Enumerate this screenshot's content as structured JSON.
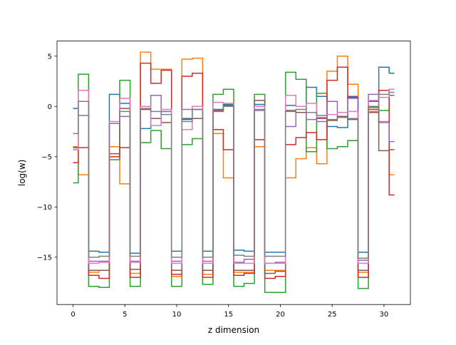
{
  "chart_data": {
    "type": "line",
    "step": true,
    "title": "",
    "xlabel": "z dimension",
    "ylabel": "log(w)",
    "xlim": [
      -1.55,
      32.55
    ],
    "ylim": [
      -19.7,
      6.5
    ],
    "xticks": [
      0,
      5,
      10,
      15,
      20,
      25,
      30
    ],
    "yticks": [
      5,
      0,
      -5,
      -10,
      -15
    ],
    "grid": false,
    "legend": "none",
    "series": [
      {
        "color": "#1f77b4",
        "values": [
          -0.2,
          0.5,
          -14.4,
          -14.5,
          1.2,
          0.3,
          -14.6,
          -2.2,
          -1.2,
          -0.5,
          -14.4,
          -1.2,
          -0.3,
          -14.4,
          -0.3,
          0.2,
          -14.3,
          -14.4,
          0.2,
          -14.5,
          -14.5,
          0.1,
          0,
          1.9,
          1,
          -2,
          -2.1,
          1,
          -14.5,
          0.5,
          3.9,
          3.3
        ]
      },
      {
        "color": "#ff7f0e",
        "values": [
          -4,
          -6.8,
          -16.5,
          -16.3,
          -4,
          -7.7,
          -16.6,
          5.4,
          3.7,
          3.7,
          -16.9,
          4.7,
          4.8,
          -16.7,
          -2.7,
          -7.1,
          -16.5,
          -16.5,
          -4,
          -16.3,
          -16.3,
          -7.1,
          -5.2,
          -4.1,
          -5.7,
          3.5,
          5,
          2.2,
          -16.5,
          -0.5,
          -1.5,
          -6.8
        ]
      },
      {
        "color": "#2ca02c",
        "values": [
          -7.6,
          3.2,
          -17.9,
          -18,
          -5.3,
          2.6,
          -17.9,
          -3.6,
          -2.4,
          -4.2,
          -17.9,
          -3.8,
          -3.2,
          -17.7,
          1.2,
          1.7,
          -17.9,
          -17.6,
          1.2,
          -18.5,
          -18.5,
          3.4,
          2.7,
          -4.5,
          1.3,
          -4.2,
          -4,
          -3.4,
          -18.1,
          -0.1,
          -0.4,
          1.1
        ]
      },
      {
        "color": "#d62728",
        "values": [
          -5.6,
          -4.1,
          -16.8,
          -17.1,
          -5,
          -4.1,
          -17,
          4.3,
          2.3,
          3.6,
          -16.7,
          3,
          3.3,
          -17,
          -2.3,
          -4.3,
          -16.8,
          -16.6,
          -3.3,
          -17.1,
          -16.9,
          -3.8,
          -3.1,
          -2.6,
          -3.3,
          2.6,
          3.9,
          0.9,
          -17,
          -0.3,
          1.6,
          -8.8
        ]
      },
      {
        "color": "#9467bd",
        "values": [
          -4.3,
          -0.9,
          -15.4,
          -15.4,
          -1.7,
          -1,
          -15.4,
          -0.3,
          1.1,
          -0.5,
          -15.4,
          -0.3,
          -0.3,
          -15.4,
          -0.5,
          0.1,
          -15.5,
          -15.2,
          -0.4,
          -15.6,
          -15.5,
          -2,
          -0.6,
          -1.3,
          -1.5,
          0.5,
          -1,
          0.8,
          -15.3,
          1.2,
          -1.6,
          -3.5
        ]
      },
      {
        "color": "#8c564b",
        "values": [
          -4.1,
          0.5,
          -16.3,
          -16.3,
          -4.7,
          -0.2,
          -16.2,
          -0.3,
          -1.2,
          -1.6,
          -16.3,
          -1.3,
          -1.2,
          -16.3,
          -0.4,
          0.1,
          -16.3,
          -16.3,
          0.6,
          -16.6,
          -16.4,
          -0.4,
          -0.6,
          -0.6,
          -1.2,
          -1.4,
          -1,
          -1.3,
          -16.3,
          -0.6,
          -4.4,
          -4.3
        ]
      },
      {
        "color": "#e377c2",
        "values": [
          -4.3,
          1.6,
          -15.6,
          -15.5,
          -1.5,
          0.8,
          -15.5,
          0,
          -1.9,
          -0.3,
          -15.6,
          -2.3,
          0,
          -15.6,
          0.4,
          0.3,
          -15.6,
          -15.6,
          0,
          -15.6,
          -15.6,
          1.1,
          0,
          0.3,
          -1.1,
          -0.8,
          -0.6,
          -0.5,
          -15.6,
          0.6,
          0.9,
          1.7
        ]
      },
      {
        "color": "#7f7f7f",
        "values": [
          -2.7,
          0.5,
          -15,
          -14.9,
          -1.7,
          -0.5,
          -14.9,
          -0.2,
          -0.5,
          -0.8,
          -15,
          -1.5,
          -0.3,
          -15,
          -0.5,
          0,
          -14.8,
          -14.9,
          -0.3,
          -14.9,
          -14.9,
          -0.5,
          -0.3,
          -0.6,
          -0.9,
          -1.3,
          -1.1,
          -1.2,
          -15.1,
          0,
          1.2,
          1.4
        ]
      }
    ]
  }
}
